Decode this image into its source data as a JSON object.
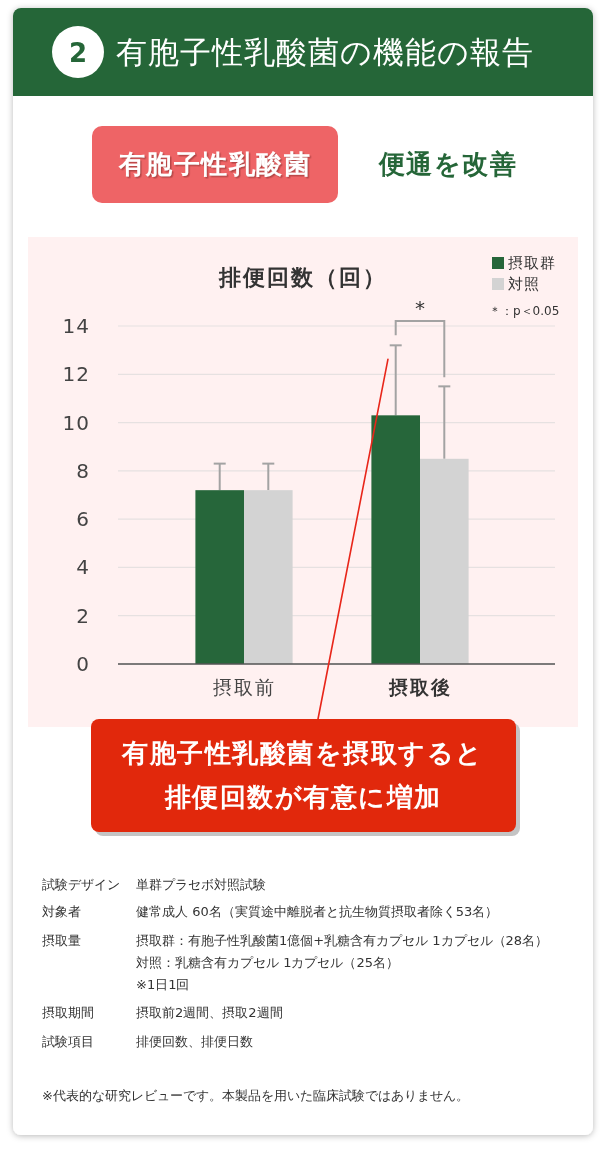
{
  "chart_data": {
    "type": "bar",
    "title": "有胞子性乳酸菌の機能の報告",
    "ylabel": "排便回数（回）",
    "categories": [
      "摂取前",
      "摂取後"
    ],
    "series": [
      {
        "name": "摂取群",
        "color": "#26663a",
        "values": [
          7.2,
          10.3
        ],
        "errors": [
          [
            7.2,
            8.3
          ],
          [
            10.3,
            13.2
          ]
        ]
      },
      {
        "name": "対照",
        "color": "#d3d3d3",
        "values": [
          7.2,
          8.5
        ],
        "errors": [
          [
            7.2,
            8.3
          ],
          [
            8.5,
            11.5
          ]
        ]
      }
    ],
    "ylim": [
      0,
      14
    ],
    "yticks": [
      0,
      2,
      4,
      6,
      8,
      10,
      12,
      14
    ],
    "grid": "y",
    "legend": "top right",
    "annotations": [
      "2",
      "有胞子性乳酸菌",
      "便通を改善",
      "*",
      "＊：p＜0.05",
      "有胞子性乳酸菌を摂取すると排便回数が有意に増加",
      "試験デザイン",
      "単群プラセボ対照試験",
      "対象者",
      "健常成人 60名（実質途中離脱者と抗生物質摂取者除く53名）",
      "摂取量",
      "摂取群：有胞子性乳酸菌1億個+乳糖含有カプセル 1カプセル（28名）",
      "対照：乳糖含有カプセル 1カプセル（25名）",
      "※1日1回",
      "摂取期間",
      "摂取前2週間、摂取2週間",
      "試験項目",
      "排便回数、排便日数",
      "※代表的な研究レビューです。本製品を用いた臨床試験ではありません。"
    ]
  }
}
